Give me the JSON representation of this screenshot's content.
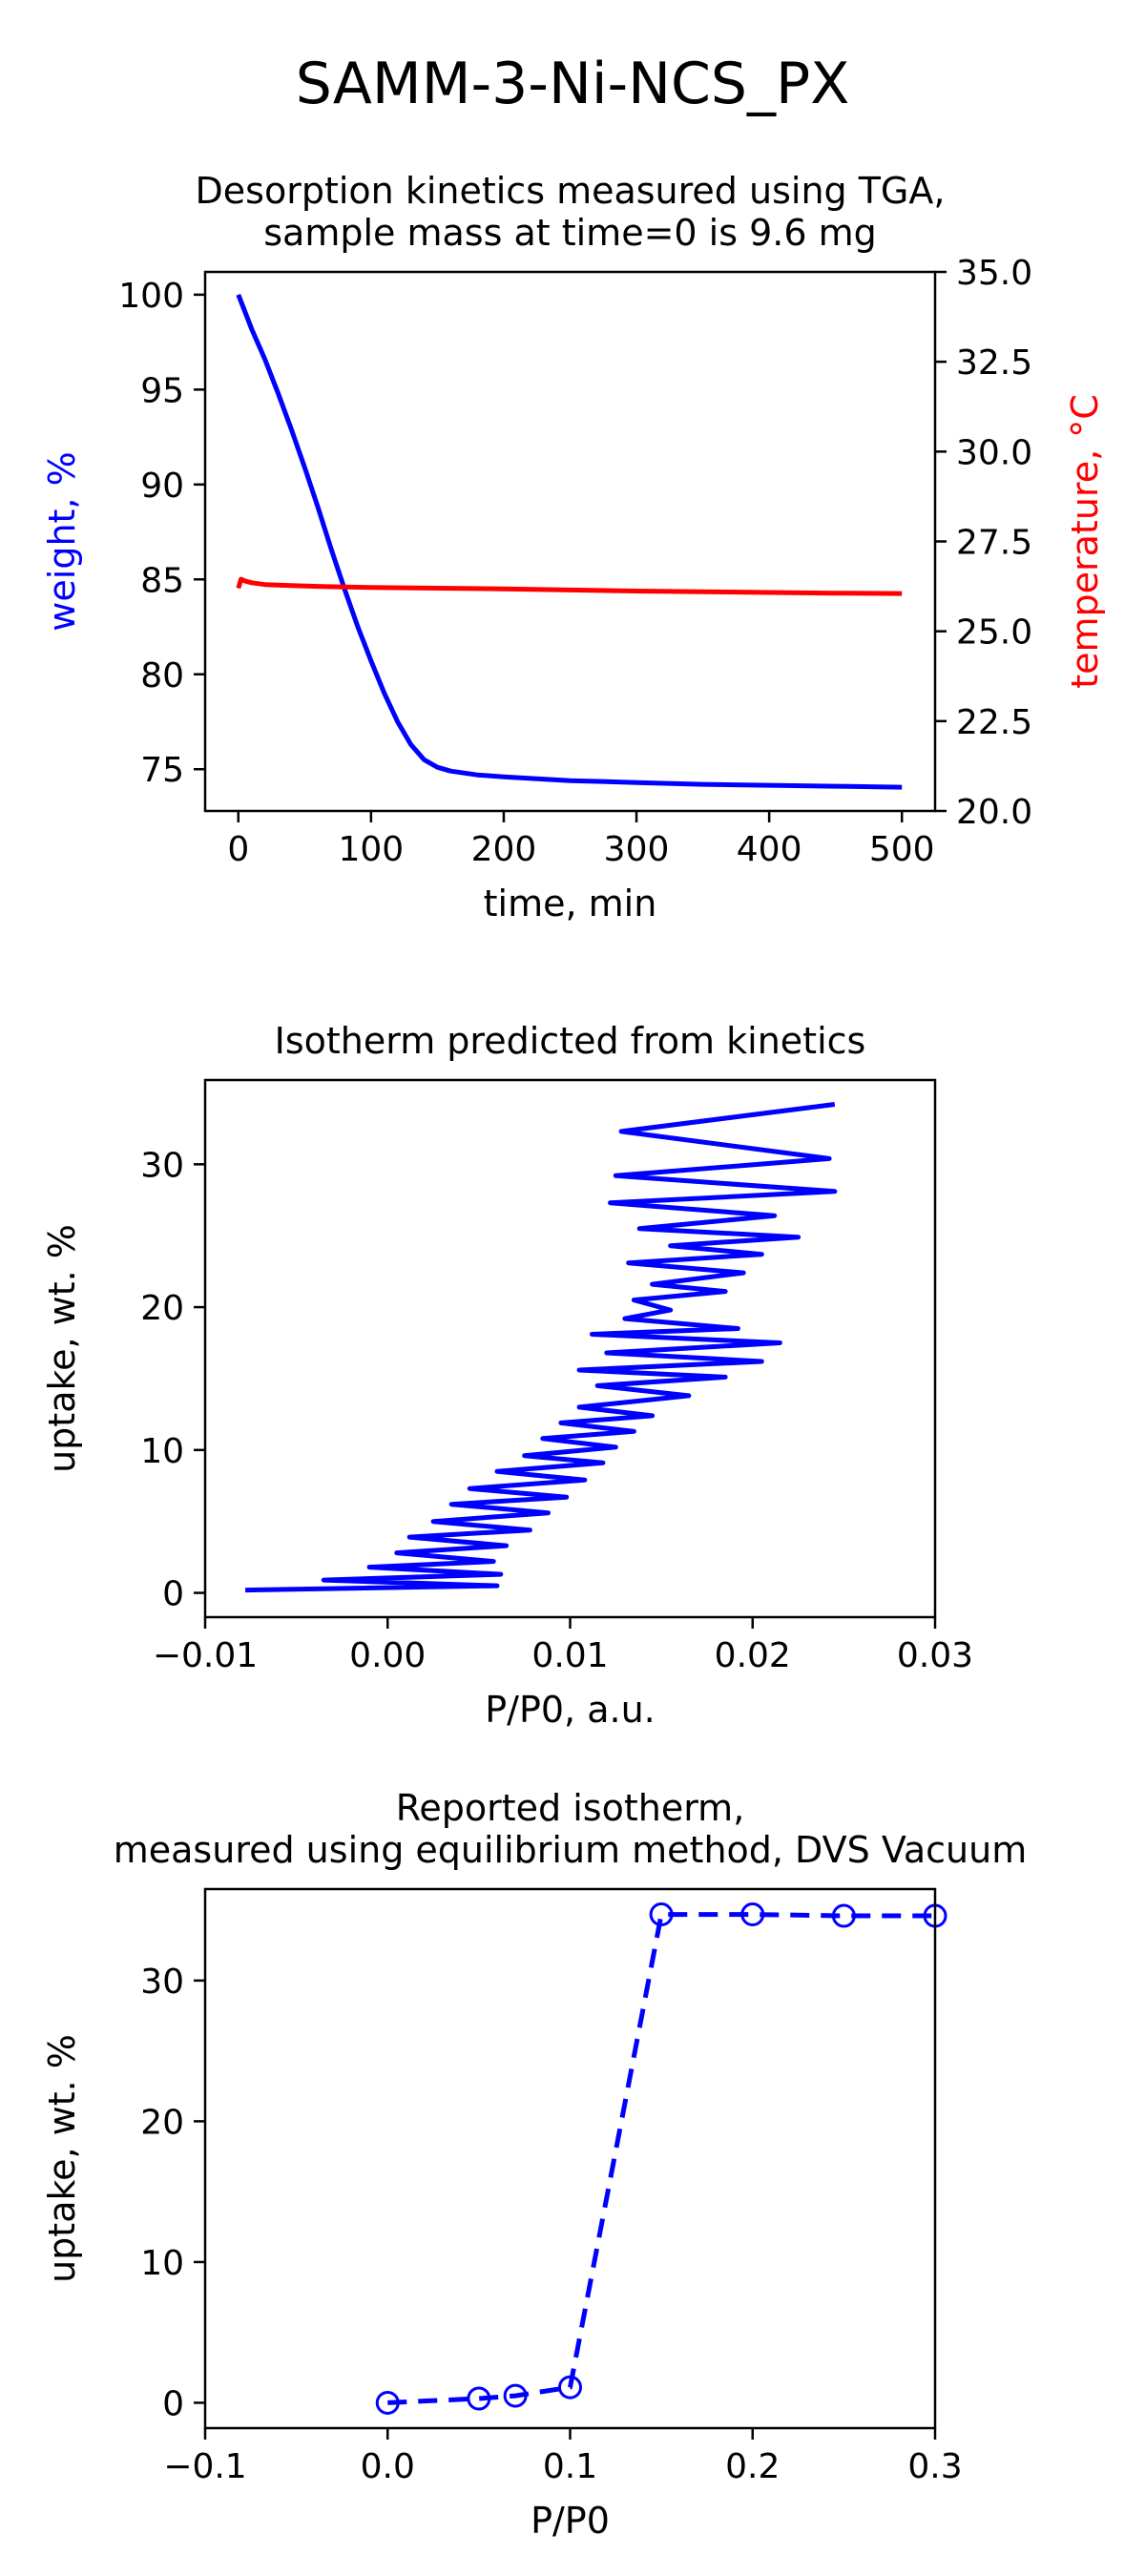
{
  "figure": {
    "title": "SAMM-3-Ni-NCS_PX"
  },
  "chart_data": [
    {
      "type": "line",
      "title": "Desorption kinetics measured using TGA,\nsample mass at time=0 is 9.6 mg",
      "xlabel": "time, min",
      "ylabel": "weight, %",
      "y2label": "temperature, °C",
      "xlim": [
        -25,
        525
      ],
      "ylim": [
        72.8,
        101.2
      ],
      "y2lim": [
        20,
        35
      ],
      "x_ticks": [
        "0",
        "100",
        "200",
        "300",
        "400",
        "500"
      ],
      "y_ticks": [
        "75",
        "80",
        "85",
        "90",
        "95",
        "100"
      ],
      "y2_ticks": [
        "20.0",
        "22.5",
        "25.0",
        "27.5",
        "30.0",
        "32.5",
        "35.0"
      ],
      "grid": false,
      "series": [
        {
          "axis": "left",
          "color": "#0000ff",
          "x": [
            0,
            10,
            20,
            30,
            40,
            50,
            60,
            70,
            80,
            90,
            100,
            110,
            120,
            130,
            140,
            150,
            160,
            170,
            180,
            200,
            250,
            300,
            350,
            400,
            450,
            500
          ],
          "y": [
            100,
            98.2,
            96.6,
            94.8,
            92.9,
            90.9,
            88.8,
            86.6,
            84.5,
            82.5,
            80.7,
            79.0,
            77.5,
            76.3,
            75.5,
            75.1,
            74.9,
            74.8,
            74.7,
            74.6,
            74.4,
            74.3,
            74.2,
            74.15,
            74.1,
            74.05
          ]
        },
        {
          "axis": "right",
          "color": "#ff0000",
          "x": [
            0,
            2,
            5,
            10,
            20,
            40,
            60,
            80,
            100,
            150,
            200,
            250,
            300,
            350,
            400,
            450,
            500
          ],
          "y": [
            26.2,
            26.45,
            26.4,
            26.35,
            26.3,
            26.27,
            26.25,
            26.23,
            26.22,
            26.2,
            26.18,
            26.15,
            26.12,
            26.1,
            26.08,
            26.06,
            26.05
          ]
        }
      ]
    },
    {
      "type": "line",
      "title": "Isotherm predicted from kinetics",
      "xlabel": "P/P0, a.u.",
      "ylabel": "uptake, wt. %",
      "xlim": [
        -0.01,
        0.03
      ],
      "ylim": [
        -1.7,
        35.9
      ],
      "x_ticks": [
        "−0.01",
        "0.00",
        "0.01",
        "0.02",
        "0.03"
      ],
      "y_ticks": [
        "0",
        "10",
        "20",
        "30"
      ],
      "grid": false,
      "series": [
        {
          "color": "#0000ff",
          "x": [
            -0.0078,
            0.006,
            -0.0035,
            0.0062,
            -0.001,
            0.0058,
            0.0005,
            0.0065,
            0.0012,
            0.0078,
            0.0025,
            0.0088,
            0.0035,
            0.0098,
            0.0045,
            0.0108,
            0.006,
            0.0118,
            0.0075,
            0.0125,
            0.0085,
            0.0135,
            0.0095,
            0.0145,
            0.0105,
            0.0165,
            0.0115,
            0.0185,
            0.0105,
            0.0205,
            0.012,
            0.0215,
            0.0112,
            0.0192,
            0.013,
            0.0155,
            0.0135,
            0.0185,
            0.0145,
            0.0195,
            0.0132,
            0.0205,
            0.0155,
            0.0225,
            0.0138,
            0.0212,
            0.0122,
            0.0245,
            0.0125,
            0.0242,
            0.0128,
            0.0245
          ],
          "y": [
            0.2,
            0.5,
            0.9,
            1.3,
            1.8,
            2.2,
            2.8,
            3.3,
            3.9,
            4.4,
            5.0,
            5.6,
            6.2,
            6.7,
            7.3,
            7.9,
            8.5,
            9.1,
            9.6,
            10.2,
            10.8,
            11.3,
            11.9,
            12.4,
            13.0,
            13.8,
            14.5,
            15.1,
            15.6,
            16.2,
            16.8,
            17.5,
            18.1,
            18.5,
            19.2,
            19.8,
            20.5,
            21.1,
            21.6,
            22.4,
            23.1,
            23.7,
            24.3,
            24.9,
            25.5,
            26.4,
            27.3,
            28.1,
            29.2,
            30.4,
            32.3,
            34.2
          ]
        }
      ]
    },
    {
      "type": "line",
      "title": "Reported isotherm,\nmeasured using equilibrium method, DVS Vacuum",
      "xlabel": "P/P0",
      "ylabel": "uptake, wt. %",
      "xlim": [
        -0.1,
        0.3
      ],
      "ylim": [
        -1.8,
        36.5
      ],
      "x_ticks": [
        "−0.1",
        "0.0",
        "0.1",
        "0.2",
        "0.3"
      ],
      "y_ticks": [
        "0",
        "10",
        "20",
        "30"
      ],
      "grid": false,
      "series": [
        {
          "color": "#0000ff",
          "linestyle": "dashed",
          "marker": "open-circle",
          "x": [
            0.0,
            0.05,
            0.07,
            0.1,
            0.15,
            0.2,
            0.25,
            0.3
          ],
          "y": [
            0.0,
            0.3,
            0.5,
            1.1,
            34.7,
            34.7,
            34.6,
            34.6
          ]
        }
      ]
    }
  ]
}
